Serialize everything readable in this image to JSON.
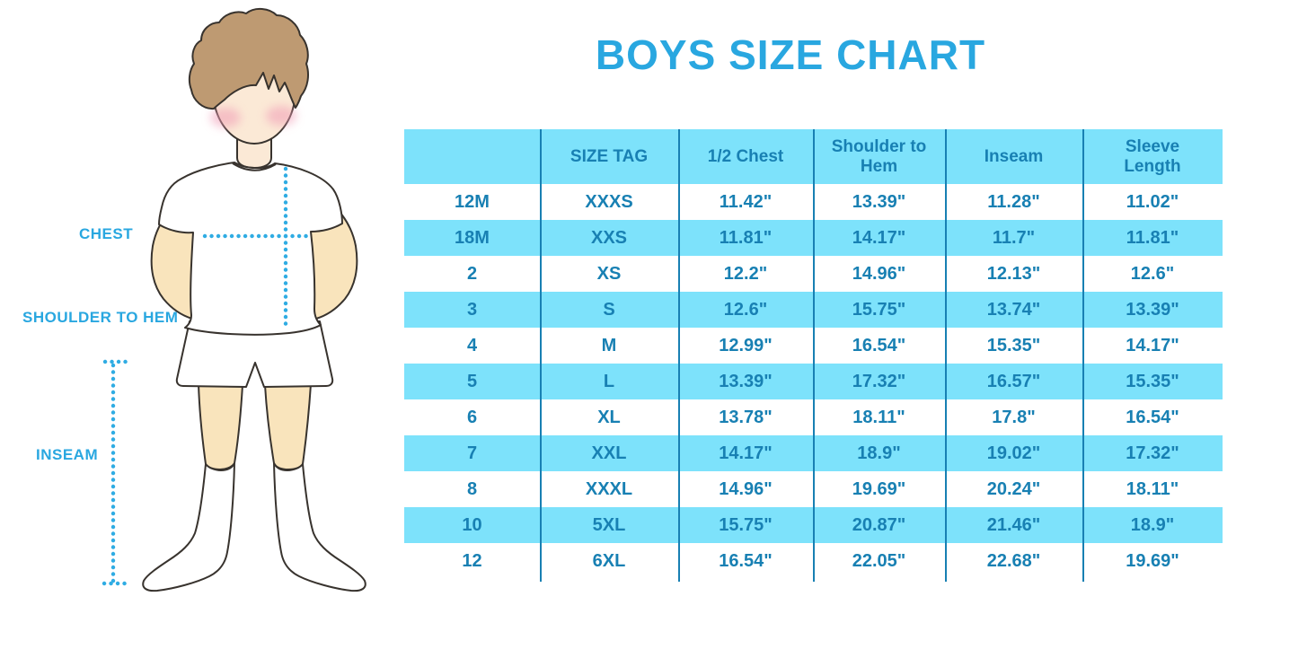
{
  "title": "BOYS SIZE CHART",
  "colors": {
    "accent": "#29A7E0",
    "band": "#7DE2FB",
    "ink": "#1880B3",
    "dotted_line": "#2FACE3",
    "skin_face": "#FBE9D6",
    "skin_body": "#F9E4BC",
    "hair": "#BE9A72",
    "blush": "#F19CB6",
    "outline": "#38332E",
    "clothing": "#FFFFFF"
  },
  "figure": {
    "illustration": "boy-outline-illustration",
    "labels": {
      "chest": "CHEST",
      "shoulder_to_hem": "SHOULDER TO HEM",
      "inseam": "INSEAM"
    }
  },
  "chart_data": {
    "type": "table",
    "title": "BOYS SIZE CHART",
    "columns": [
      "",
      "SIZE TAG",
      "1/2 Chest",
      "Shoulder to Hem",
      "Inseam",
      "Sleeve Length"
    ],
    "rows": [
      [
        "12M",
        "XXXS",
        "11.42\"",
        "13.39\"",
        "11.28\"",
        "11.02\""
      ],
      [
        "18M",
        "XXS",
        "11.81\"",
        "14.17\"",
        "11.7\"",
        "11.81\""
      ],
      [
        "2",
        "XS",
        "12.2\"",
        "14.96\"",
        "12.13\"",
        "12.6\""
      ],
      [
        "3",
        "S",
        "12.6\"",
        "15.75\"",
        "13.74\"",
        "13.39\""
      ],
      [
        "4",
        "M",
        "12.99\"",
        "16.54\"",
        "15.35\"",
        "14.17\""
      ],
      [
        "5",
        "L",
        "13.39\"",
        "17.32\"",
        "16.57\"",
        "15.35\""
      ],
      [
        "6",
        "XL",
        "13.78\"",
        "18.11\"",
        "17.8\"",
        "16.54\""
      ],
      [
        "7",
        "XXL",
        "14.17\"",
        "18.9\"",
        "19.02\"",
        "17.32\""
      ],
      [
        "8",
        "XXXL",
        "14.96\"",
        "19.69\"",
        "20.24\"",
        "18.11\""
      ],
      [
        "10",
        "5XL",
        "15.75\"",
        "20.87\"",
        "21.46\"",
        "18.9\""
      ],
      [
        "12",
        "6XL",
        "16.54\"",
        "22.05\"",
        "22.68\"",
        "19.69\""
      ]
    ],
    "layout": {
      "header_background": "#7DE2FB",
      "row_striping": "alternating white / cyan starting white after header",
      "column_dividers": true
    }
  }
}
